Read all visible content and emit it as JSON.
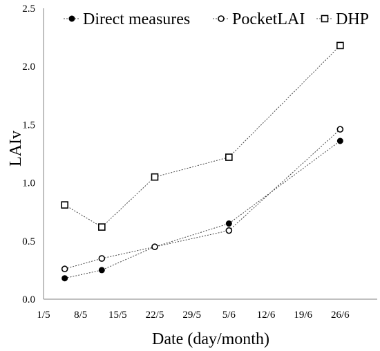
{
  "chart_data": {
    "type": "line",
    "xlabel": "Date (day/month)",
    "ylabel": "LAIv",
    "x_ticks": [
      "1/5",
      "8/5",
      "15/5",
      "22/5",
      "29/5",
      "5/6",
      "12/6",
      "19/6",
      "26/6"
    ],
    "x_tick_days": [
      0,
      7,
      14,
      21,
      28,
      35,
      42,
      49,
      56
    ],
    "xlim": [
      0,
      63
    ],
    "ylim": [
      0,
      2.5
    ],
    "y_ticks": [
      0.0,
      0.5,
      1.0,
      1.5,
      2.0,
      2.5
    ],
    "y_tick_labels": [
      "0.0",
      "0.5",
      "1.0",
      "1.5",
      "2.0",
      "2.5"
    ],
    "grid": false,
    "legend_position": "top",
    "series": [
      {
        "name": "Direct measures",
        "marker": "filled-circle",
        "x": [
          "5/5",
          "12/5",
          "22/5",
          "5/6",
          "26/6"
        ],
        "x_days": [
          4,
          11,
          21,
          35,
          56
        ],
        "y": [
          0.18,
          0.25,
          0.45,
          0.65,
          1.36
        ]
      },
      {
        "name": "PocketLAI",
        "marker": "open-circle",
        "x": [
          "5/5",
          "12/5",
          "22/5",
          "5/6",
          "26/6"
        ],
        "x_days": [
          4,
          11,
          21,
          35,
          56
        ],
        "y": [
          0.26,
          0.35,
          0.45,
          0.59,
          1.46
        ]
      },
      {
        "name": "DHP",
        "marker": "open-square",
        "x": [
          "5/5",
          "12/5",
          "22/5",
          "5/6",
          "26/6"
        ],
        "x_days": [
          4,
          11,
          21,
          35,
          56
        ],
        "y": [
          0.81,
          0.62,
          1.05,
          1.22,
          2.18
        ]
      }
    ]
  }
}
